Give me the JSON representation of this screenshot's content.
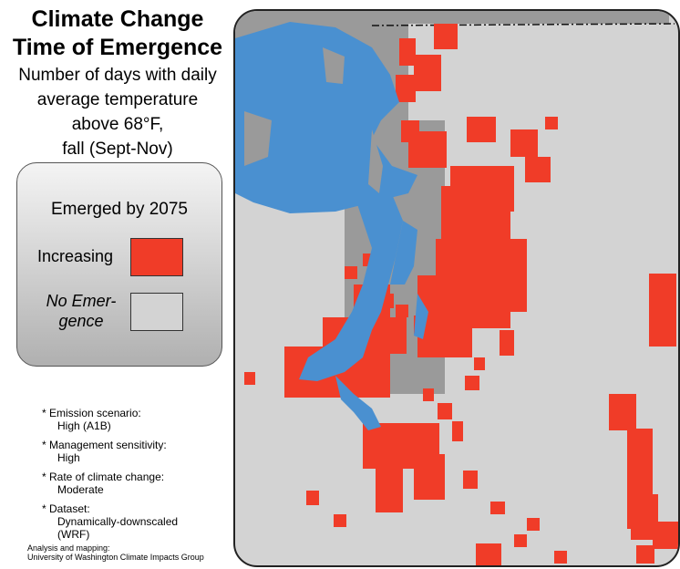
{
  "title": {
    "line1": "Climate Change",
    "line2": "Time of Emergence",
    "sub1": "Number of days with daily",
    "sub2": "average temperature",
    "sub3": "above 68°F,",
    "sub4": "fall (Sept-Nov)"
  },
  "legend": {
    "heading": "Emerged by 2075",
    "items": [
      {
        "label": "Increasing",
        "color": "#f03c28"
      },
      {
        "label_line1": "No Emer-",
        "label_line2": "gence",
        "color": "#d3d3d3"
      }
    ]
  },
  "notes": [
    {
      "bullet": "* Emission scenario:",
      "value": "High (A1B)"
    },
    {
      "bullet": "* Management sensitivity:",
      "value": "High"
    },
    {
      "bullet": "* Rate of climate change:",
      "value": "Moderate"
    },
    {
      "bullet": "* Dataset:",
      "value": "Dynamically-downscaled",
      "value2": "(WRF)"
    }
  ],
  "credit": {
    "line1": "Analysis and mapping:",
    "line2": "University of Washington Climate Impacts Group"
  },
  "map": {
    "water_color": "#4a90d0",
    "land_color": "#d3d3d3",
    "outside_land_color": "#9a9a9a",
    "increasing_color": "#f03c28"
  }
}
